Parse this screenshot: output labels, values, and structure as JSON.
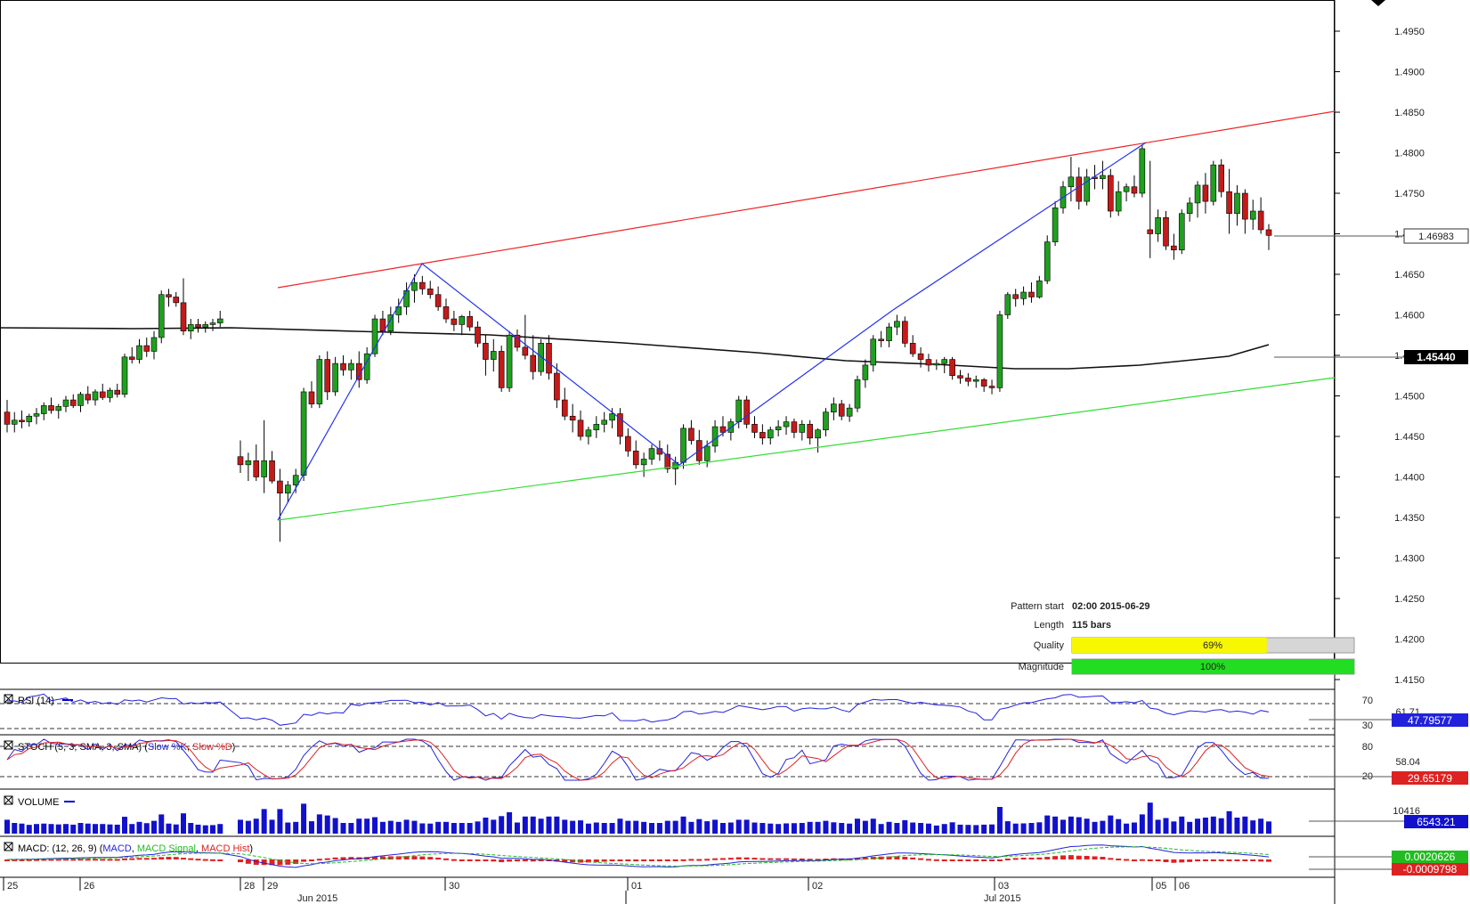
{
  "chart_data": {
    "type": "candlestick",
    "price_axis": {
      "min": 1.415,
      "max": 1.495,
      "ticks": [
        "1.4950",
        "1.4900",
        "1.4850",
        "1.4800",
        "1.4750",
        "1.4700",
        "1.4650",
        "1.4600",
        "1.4550",
        "1.4500",
        "1.4450",
        "1.4400",
        "1.4350",
        "1.4300",
        "1.4250",
        "1.4200",
        "1.4150"
      ]
    },
    "last_price_label": "1.46983",
    "ma_label": "1.45440",
    "time_labels": [
      "25",
      "26",
      "28",
      "29",
      "30",
      "01",
      "02",
      "03",
      "05",
      "06"
    ],
    "month_labels": [
      "Jun 2015",
      "Jul 2015"
    ],
    "pattern": {
      "start_label": "Pattern start",
      "start_value": "02:00 2015-06-29",
      "length_label": "Length",
      "length_value": "115 bars",
      "quality_label": "Quality",
      "quality_value": "69%",
      "quality": 0.69,
      "magnitude_label": "Magnitude",
      "magnitude_value": "100%",
      "magnitude": 1.0
    },
    "indicators": {
      "rsi": {
        "title": "RSI (14)",
        "levels": [
          "70",
          "30"
        ],
        "value_mid": "61.71",
        "value": "47.79577"
      },
      "stoch": {
        "title_prefix": "STOCH (5, 3, SMA, 3, SMA) (",
        "slow_k": "Slow %K",
        "slow_d": "Slow %D",
        "levels": [
          "80",
          "20"
        ],
        "value_mid": "58.04",
        "value": "29.65179"
      },
      "volume": {
        "title": "VOLUME",
        "value_mid": "10416",
        "value": "6543.21"
      },
      "macd": {
        "title_prefix": "MACD: (12, 26, 9) (",
        "macd": "MACD",
        "signal": "MACD Signal",
        "hist": "MACD Hist",
        "value_pos": "0.0020626",
        "value_neg": "-0.0009798"
      }
    },
    "candles_before_gap": [
      [
        1.448,
        1.4495,
        1.4455,
        1.4465
      ],
      [
        1.4465,
        1.448,
        1.4455,
        1.447
      ],
      [
        1.447,
        1.4482,
        1.446,
        1.4468
      ],
      [
        1.4468,
        1.4478,
        1.4462,
        1.4475
      ],
      [
        1.4475,
        1.4485,
        1.4465,
        1.4478
      ],
      [
        1.4478,
        1.4492,
        1.447,
        1.4488
      ],
      [
        1.4488,
        1.4498,
        1.4478,
        1.4482
      ],
      [
        1.4482,
        1.449,
        1.4472,
        1.4487
      ],
      [
        1.4487,
        1.45,
        1.448,
        1.4495
      ],
      [
        1.4495,
        1.4502,
        1.4485,
        1.4488
      ],
      [
        1.4488,
        1.4505,
        1.448,
        1.4502
      ],
      [
        1.4502,
        1.4512,
        1.449,
        1.4495
      ],
      [
        1.4495,
        1.4508,
        1.4488,
        1.4505
      ],
      [
        1.4505,
        1.4515,
        1.4495,
        1.4498
      ],
      [
        1.4498,
        1.451,
        1.4492,
        1.4507
      ],
      [
        1.4507,
        1.4515,
        1.4498,
        1.4502
      ],
      [
        1.4502,
        1.4552,
        1.4498,
        1.4548
      ],
      [
        1.4548,
        1.456,
        1.454,
        1.4545
      ],
      [
        1.4545,
        1.457,
        1.454,
        1.4562
      ],
      [
        1.4562,
        1.4572,
        1.4548,
        1.4555
      ],
      [
        1.4555,
        1.458,
        1.4545,
        1.4572
      ],
      [
        1.4572,
        1.463,
        1.4565,
        1.4625
      ],
      [
        1.4625,
        1.4632,
        1.461,
        1.4622
      ],
      [
        1.4622,
        1.4628,
        1.461,
        1.4615
      ],
      [
        1.4615,
        1.4645,
        1.4575,
        1.458
      ],
      [
        1.458,
        1.4595,
        1.457,
        1.4588
      ],
      [
        1.4588,
        1.4595,
        1.4578,
        1.4585
      ],
      [
        1.4585,
        1.4592,
        1.4578,
        1.4588
      ],
      [
        1.4588,
        1.4595,
        1.458,
        1.459
      ],
      [
        1.459,
        1.4605,
        1.4585,
        1.4595
      ]
    ],
    "candles_after_gap": [
      [
        1.4425,
        1.4445,
        1.4405,
        1.4415
      ],
      [
        1.4415,
        1.443,
        1.4395,
        1.442
      ],
      [
        1.442,
        1.444,
        1.4395,
        1.44
      ],
      [
        1.44,
        1.447,
        1.438,
        1.442
      ],
      [
        1.442,
        1.4432,
        1.4392,
        1.4395
      ],
      [
        1.4395,
        1.441,
        1.432,
        1.438
      ],
      [
        1.438,
        1.4395,
        1.4368,
        1.439
      ],
      [
        1.439,
        1.441,
        1.438,
        1.4402
      ],
      [
        1.4402,
        1.451,
        1.4395,
        1.4505
      ],
      [
        1.4505,
        1.4518,
        1.4485,
        1.449
      ],
      [
        1.449,
        1.455,
        1.4485,
        1.4545
      ],
      [
        1.4545,
        1.4555,
        1.4495,
        1.4505
      ],
      [
        1.4505,
        1.4548,
        1.45,
        1.454
      ],
      [
        1.454,
        1.455,
        1.4525,
        1.4532
      ],
      [
        1.4532,
        1.4545,
        1.452,
        1.454
      ],
      [
        1.454,
        1.4555,
        1.451,
        1.452
      ],
      [
        1.452,
        1.456,
        1.4515,
        1.4552
      ],
      [
        1.4552,
        1.46,
        1.4548,
        1.4595
      ],
      [
        1.4595,
        1.4605,
        1.4575,
        1.458
      ],
      [
        1.458,
        1.461,
        1.4575,
        1.46
      ],
      [
        1.46,
        1.462,
        1.459,
        1.461
      ],
      [
        1.461,
        1.464,
        1.46,
        1.463
      ],
      [
        1.463,
        1.465,
        1.4615,
        1.464
      ],
      [
        1.464,
        1.4648,
        1.4625,
        1.4632
      ],
      [
        1.4632,
        1.4642,
        1.462,
        1.4625
      ],
      [
        1.4625,
        1.4635,
        1.4605,
        1.461
      ],
      [
        1.461,
        1.462,
        1.459,
        1.4595
      ],
      [
        1.4595,
        1.4605,
        1.458,
        1.4588
      ],
      [
        1.4588,
        1.46,
        1.4575,
        1.4598
      ],
      [
        1.4598,
        1.4605,
        1.458,
        1.4585
      ],
      [
        1.4585,
        1.4592,
        1.456,
        1.4565
      ],
      [
        1.4565,
        1.4575,
        1.4525,
        1.4545
      ],
      [
        1.4545,
        1.457,
        1.453,
        1.4555
      ],
      [
        1.4555,
        1.4562,
        1.4505,
        1.451
      ],
      [
        1.451,
        1.458,
        1.4505,
        1.4575
      ],
      [
        1.4575,
        1.4582,
        1.4555,
        1.456
      ],
      [
        1.456,
        1.46,
        1.4545,
        1.455
      ],
      [
        1.455,
        1.4575,
        1.452,
        1.453
      ],
      [
        1.453,
        1.457,
        1.4525,
        1.4565
      ],
      [
        1.4565,
        1.4575,
        1.452,
        1.4528
      ],
      [
        1.4528,
        1.454,
        1.4485,
        1.4495
      ],
      [
        1.4495,
        1.451,
        1.447,
        1.4475
      ],
      [
        1.4475,
        1.449,
        1.4455,
        1.447
      ],
      [
        1.447,
        1.4482,
        1.4445,
        1.445
      ],
      [
        1.445,
        1.4462,
        1.444,
        1.4458
      ],
      [
        1.4458,
        1.4475,
        1.4448,
        1.4465
      ],
      [
        1.4465,
        1.448,
        1.4455,
        1.447
      ],
      [
        1.447,
        1.4485,
        1.446,
        1.4478
      ],
      [
        1.4478,
        1.4485,
        1.444,
        1.445
      ],
      [
        1.445,
        1.446,
        1.4425,
        1.4432
      ],
      [
        1.4432,
        1.4445,
        1.441,
        1.4415
      ],
      [
        1.4415,
        1.443,
        1.44,
        1.4422
      ],
      [
        1.4422,
        1.444,
        1.4415,
        1.4435
      ],
      [
        1.4435,
        1.4445,
        1.442,
        1.4428
      ],
      [
        1.4428,
        1.444,
        1.4405,
        1.441
      ],
      [
        1.441,
        1.4425,
        1.439,
        1.4418
      ],
      [
        1.4418,
        1.4465,
        1.441,
        1.446
      ],
      [
        1.446,
        1.447,
        1.444,
        1.4445
      ],
      [
        1.4445,
        1.4458,
        1.4415,
        1.442
      ],
      [
        1.442,
        1.4445,
        1.4412,
        1.4438
      ],
      [
        1.4438,
        1.447,
        1.443,
        1.4462
      ],
      [
        1.4462,
        1.4475,
        1.445,
        1.4455
      ],
      [
        1.4455,
        1.4472,
        1.4445,
        1.4468
      ],
      [
        1.4468,
        1.45,
        1.446,
        1.4495
      ],
      [
        1.4495,
        1.45,
        1.446,
        1.4465
      ],
      [
        1.4465,
        1.4475,
        1.4448,
        1.4455
      ],
      [
        1.4455,
        1.4465,
        1.444,
        1.4448
      ],
      [
        1.4448,
        1.4462,
        1.444,
        1.4458
      ],
      [
        1.4458,
        1.447,
        1.445,
        1.4462
      ],
      [
        1.4462,
        1.4475,
        1.4452,
        1.4468
      ],
      [
        1.4468,
        1.4472,
        1.4448,
        1.4455
      ],
      [
        1.4455,
        1.447,
        1.4445,
        1.4465
      ],
      [
        1.4465,
        1.447,
        1.444,
        1.4448
      ],
      [
        1.4448,
        1.446,
        1.443,
        1.4458
      ],
      [
        1.4458,
        1.4485,
        1.445,
        1.448
      ],
      [
        1.448,
        1.4498,
        1.447,
        1.449
      ],
      [
        1.449,
        1.4495,
        1.447,
        1.4475
      ],
      [
        1.4475,
        1.449,
        1.4468,
        1.4485
      ],
      [
        1.4485,
        1.4525,
        1.448,
        1.452
      ],
      [
        1.452,
        1.4545,
        1.451,
        1.4538
      ],
      [
        1.4538,
        1.4575,
        1.453,
        1.457
      ],
      [
        1.457,
        1.458,
        1.456,
        1.4568
      ],
      [
        1.4568,
        1.459,
        1.456,
        1.4585
      ],
      [
        1.4585,
        1.46,
        1.4575,
        1.4592
      ],
      [
        1.4592,
        1.4598,
        1.456,
        1.4565
      ],
      [
        1.4565,
        1.4575,
        1.4548,
        1.4552
      ],
      [
        1.4552,
        1.456,
        1.4535,
        1.4545
      ],
      [
        1.4545,
        1.4552,
        1.453,
        1.4538
      ],
      [
        1.4538,
        1.4545,
        1.4532,
        1.454
      ],
      [
        1.454,
        1.4548,
        1.4528,
        1.4545
      ],
      [
        1.4545,
        1.4548,
        1.452,
        1.4525
      ],
      [
        1.4525,
        1.4532,
        1.4515,
        1.4522
      ],
      [
        1.4522,
        1.4528,
        1.4512,
        1.4518
      ],
      [
        1.4518,
        1.4525,
        1.451,
        1.452
      ],
      [
        1.452,
        1.4522,
        1.4505,
        1.4512
      ],
      [
        1.4512,
        1.452,
        1.4502,
        1.451
      ],
      [
        1.451,
        1.4605,
        1.4505,
        1.46
      ],
      [
        1.46,
        1.4628,
        1.4595,
        1.4625
      ],
      [
        1.4625,
        1.4632,
        1.461,
        1.462
      ],
      [
        1.462,
        1.4635,
        1.4612,
        1.4628
      ],
      [
        1.4628,
        1.464,
        1.4615,
        1.4622
      ],
      [
        1.4622,
        1.4648,
        1.462,
        1.4642
      ],
      [
        1.4642,
        1.4698,
        1.4638,
        1.469
      ],
      [
        1.469,
        1.474,
        1.4685,
        1.4732
      ],
      [
        1.4732,
        1.4765,
        1.4725,
        1.4758
      ],
      [
        1.4758,
        1.4795,
        1.474,
        1.477
      ],
      [
        1.477,
        1.4782,
        1.473,
        1.474
      ],
      [
        1.474,
        1.478,
        1.4735,
        1.477
      ],
      [
        1.477,
        1.4785,
        1.4755,
        1.4768
      ],
      [
        1.4768,
        1.479,
        1.4755,
        1.4772
      ],
      [
        1.4772,
        1.478,
        1.472,
        1.4728
      ],
      [
        1.4728,
        1.4765,
        1.4722,
        1.4752
      ],
      [
        1.4752,
        1.4762,
        1.474,
        1.4758
      ],
      [
        1.4758,
        1.4772,
        1.4745,
        1.475
      ],
      [
        1.475,
        1.481,
        1.4745,
        1.4805
      ],
      [
        1.4705,
        1.479,
        1.467,
        1.47
      ],
      [
        1.47,
        1.473,
        1.469,
        1.472
      ],
      [
        1.472,
        1.4728,
        1.468,
        1.4685
      ],
      [
        1.4685,
        1.47,
        1.4668,
        1.468
      ],
      [
        1.468,
        1.473,
        1.4675,
        1.4725
      ],
      [
        1.4725,
        1.4745,
        1.4715,
        1.4738
      ],
      [
        1.4738,
        1.4765,
        1.472,
        1.476
      ],
      [
        1.476,
        1.4775,
        1.4725,
        1.474
      ],
      [
        1.474,
        1.479,
        1.4735,
        1.4785
      ],
      [
        1.4785,
        1.4792,
        1.4745,
        1.4752
      ],
      [
        1.4752,
        1.478,
        1.47,
        1.4725
      ],
      [
        1.4725,
        1.476,
        1.471,
        1.475
      ],
      [
        1.475,
        1.4755,
        1.47,
        1.4718
      ],
      [
        1.4718,
        1.4742,
        1.4705,
        1.4728
      ],
      [
        1.4728,
        1.4745,
        1.47,
        1.4705
      ],
      [
        1.4705,
        1.4712,
        1.468,
        1.4698
      ]
    ]
  }
}
